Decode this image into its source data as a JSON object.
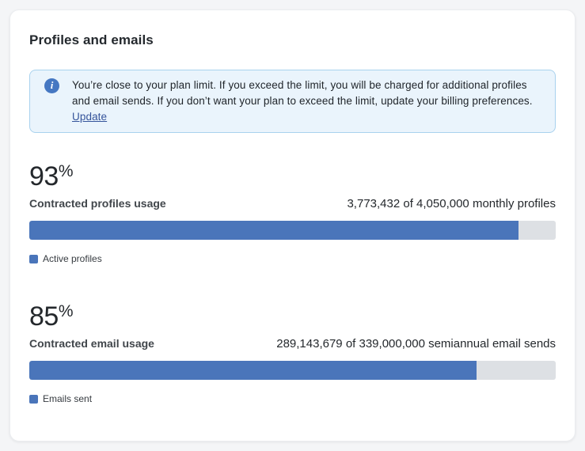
{
  "card": {
    "title": "Profiles and emails",
    "alert": {
      "icon_glyph": "i",
      "message": "You’re close to your plan limit. If you exceed the limit, you will be charged for additional profiles and email sends. If you don’t want your plan to exceed the limit, update your billing preferences. ",
      "link_label": "Update"
    },
    "sections": [
      {
        "percent_value": "93",
        "percent_symbol": "%",
        "label": "Contracted profiles usage",
        "detail": "3,773,432 of 4,050,000 monthly profiles",
        "used": 3773432,
        "limit": 4050000,
        "progress_percent": 93,
        "legend_label": "Active profiles"
      },
      {
        "percent_value": "85",
        "percent_symbol": "%",
        "label": "Contracted email usage",
        "detail": "289,143,679 of 339,000,000 semiannual email sends",
        "used": 289143679,
        "limit": 339000000,
        "progress_percent": 85,
        "legend_label": "Emails sent"
      }
    ]
  },
  "colors": {
    "page-bg": "#f4f5f7",
    "card-bg": "#ffffff",
    "accent-blue": "#4a75ba",
    "bar-track": "#dde0e4",
    "alert-bg": "#eaf4fc",
    "alert-border": "#a9d2ee",
    "info-icon-bg": "#4577c2",
    "link-color": "#35549b"
  }
}
